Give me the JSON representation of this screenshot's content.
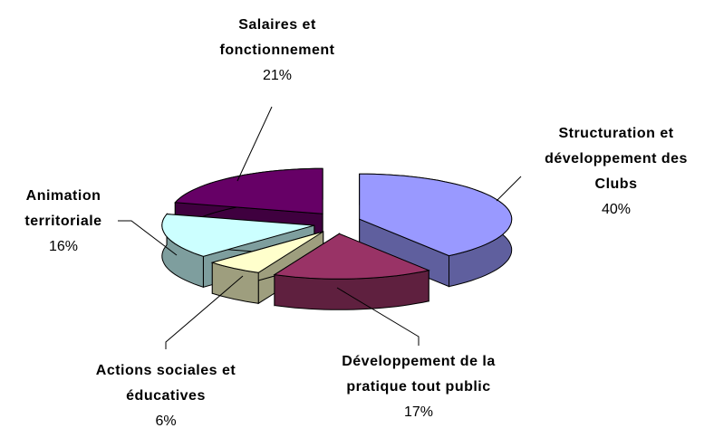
{
  "chart_data": {
    "type": "pie3d",
    "categories": [
      "Structuration et développement des Clubs",
      "Développement de la pratique tout public",
      "Actions sociales et éducatives",
      "Animation territoriale",
      "Salaires et fonctionnement"
    ],
    "values": [
      40,
      17,
      6,
      16,
      21
    ],
    "value_labels": [
      "40%",
      "17%",
      "6%",
      "16%",
      "21%"
    ],
    "colors": [
      "#9999ff",
      "#993366",
      "#ffffcc",
      "#ccffff",
      "#660066"
    ]
  }
}
